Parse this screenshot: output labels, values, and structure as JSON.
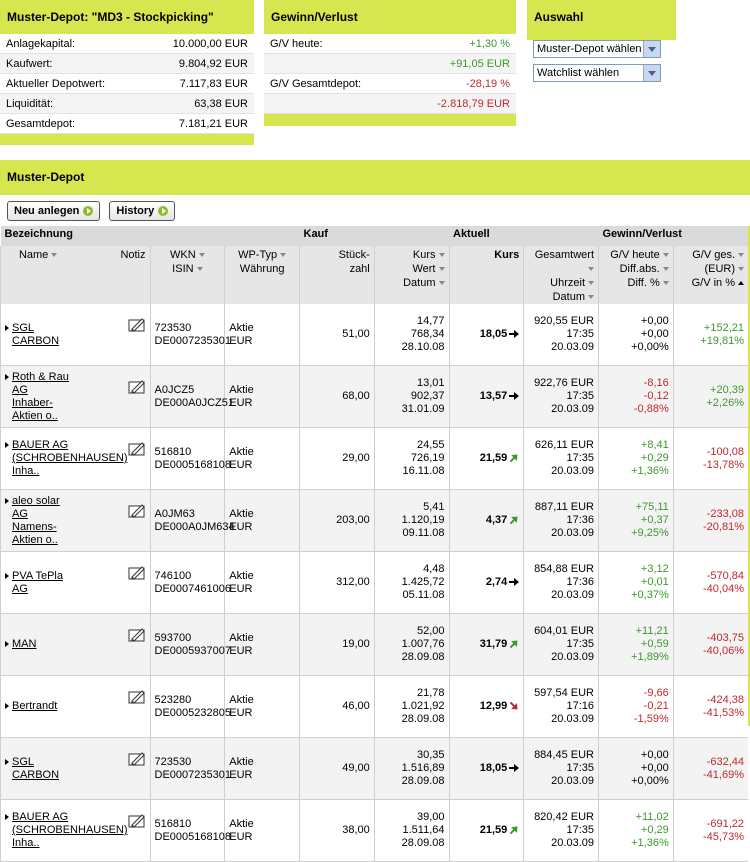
{
  "summary": {
    "title": "Muster-Depot: \"MD3 - Stockpicking\"",
    "rows": [
      [
        "Anlagekapital:",
        "10.000,00 EUR"
      ],
      [
        "Kaufwert:",
        "9.804,92 EUR"
      ],
      [
        "Aktueller Depotwert:",
        "7.117,83 EUR"
      ],
      [
        "Liquidität:",
        "63,38 EUR"
      ],
      [
        "Gesamtdepot:",
        "7.181,21 EUR"
      ]
    ]
  },
  "gv": {
    "title": "Gewinn/Verlust",
    "rows": [
      {
        "label": "G/V heute:",
        "pct": "+1,30 %",
        "abs": "+91,05 EUR"
      },
      {
        "label": "G/V Gesamtdepot:",
        "pct": "-28,19 %",
        "abs": "-2.818,79 EUR"
      }
    ]
  },
  "auswahl": {
    "title": "Auswahl",
    "selects": [
      "Muster-Depot wählen",
      "Watchlist wählen"
    ]
  },
  "depot": {
    "title": "Muster-Depot",
    "buttons": [
      "Neu anlegen",
      "History"
    ],
    "groups": [
      "Bezeichnung",
      "Kauf",
      "Aktuell",
      "Gewinn/Verlust"
    ],
    "columns": [
      [
        "Name"
      ],
      [
        "Notiz"
      ],
      [
        "WKN",
        "ISIN"
      ],
      [
        "WP-Typ",
        "Währung"
      ],
      [
        "Stück-",
        "zahl"
      ],
      [
        "Kurs",
        "Wert",
        "Datum"
      ],
      [
        "Kurs"
      ],
      [
        "Gesamtwert",
        "Uhrzeit",
        "Datum"
      ],
      [
        "G/V heute",
        "Diff.abs.",
        "Diff. %"
      ],
      [
        "G/V ges.",
        "(EUR)",
        "G/V in %"
      ]
    ],
    "rows": [
      {
        "name": "SGL CARBON",
        "wkn": "723530",
        "isin": "DE0007235301",
        "typ": "Aktie",
        "currency": "EUR",
        "qty": "51,00",
        "buy": [
          "14,77",
          "768,34",
          "28.10.08"
        ],
        "price": "18,05",
        "trend": "right",
        "now": [
          "920,55 EUR",
          "17:35",
          "20.03.09"
        ],
        "today": [
          "+0,00",
          "+0,00",
          "+0,00%"
        ],
        "total": [
          "+152,21",
          "+19,81%"
        ]
      },
      {
        "name": "Roth & Rau AG Inhaber-Aktien o..",
        "wkn": "A0JCZ5",
        "isin": "DE000A0JCZ51",
        "typ": "Aktie",
        "currency": "EUR",
        "qty": "68,00",
        "buy": [
          "13,01",
          "902,37",
          "31.01.09"
        ],
        "price": "13,57",
        "trend": "right",
        "now": [
          "922,76 EUR",
          "17:35",
          "20.03.09"
        ],
        "today": [
          "-8,16",
          "-0,12",
          "-0,88%"
        ],
        "total": [
          "+20,39",
          "+2,26%"
        ]
      },
      {
        "name": "BAUER AG (SCHROBENHAUSEN) Inha..",
        "wkn": "516810",
        "isin": "DE0005168108",
        "typ": "Aktie",
        "currency": "EUR",
        "qty": "29,00",
        "buy": [
          "24,55",
          "726,19",
          "16.11.08"
        ],
        "price": "21,59",
        "trend": "up",
        "now": [
          "626,11 EUR",
          "17:35",
          "20.03.09"
        ],
        "today": [
          "+8,41",
          "+0,29",
          "+1,36%"
        ],
        "total": [
          "-100,08",
          "-13,78%"
        ]
      },
      {
        "name": "aleo solar AG Namens-Aktien o..",
        "wkn": "A0JM63",
        "isin": "DE000A0JM634",
        "typ": "Aktie",
        "currency": "EUR",
        "qty": "203,00",
        "buy": [
          "5,41",
          "1.120,19",
          "09.11.08"
        ],
        "price": "4,37",
        "trend": "up",
        "now": [
          "887,11 EUR",
          "17:36",
          "20.03.09"
        ],
        "today": [
          "+75,11",
          "+0,37",
          "+9,25%"
        ],
        "total": [
          "-233,08",
          "-20,81%"
        ]
      },
      {
        "name": "PVA TePla AG",
        "wkn": "746100",
        "isin": "DE0007461006",
        "typ": "Aktie",
        "currency": "EUR",
        "qty": "312,00",
        "buy": [
          "4,48",
          "1.425,72",
          "05.11.08"
        ],
        "price": "2,74",
        "trend": "right",
        "now": [
          "854,88 EUR",
          "17:36",
          "20.03.09"
        ],
        "today": [
          "+3,12",
          "+0,01",
          "+0,37%"
        ],
        "total": [
          "-570,84",
          "-40,04%"
        ]
      },
      {
        "name": "MAN",
        "wkn": "593700",
        "isin": "DE0005937007",
        "typ": "Aktie",
        "currency": "EUR",
        "qty": "19,00",
        "buy": [
          "52,00",
          "1.007,76",
          "28.09.08"
        ],
        "price": "31,79",
        "trend": "up",
        "now": [
          "604,01 EUR",
          "17:35",
          "20.03.09"
        ],
        "today": [
          "+11,21",
          "+0,59",
          "+1,89%"
        ],
        "total": [
          "-403,75",
          "-40,06%"
        ]
      },
      {
        "name": "Bertrandt",
        "wkn": "523280",
        "isin": "DE0005232805",
        "typ": "Aktie",
        "currency": "EUR",
        "qty": "46,00",
        "buy": [
          "21,78",
          "1.021,92",
          "28.09.08"
        ],
        "price": "12,99",
        "trend": "down",
        "now": [
          "597,54 EUR",
          "17:16",
          "20.03.09"
        ],
        "today": [
          "-9,66",
          "-0,21",
          "-1,59%"
        ],
        "total": [
          "-424,38",
          "-41,53%"
        ]
      },
      {
        "name": "SGL CARBON",
        "wkn": "723530",
        "isin": "DE0007235301",
        "typ": "Aktie",
        "currency": "EUR",
        "qty": "49,00",
        "buy": [
          "30,35",
          "1.516,89",
          "28.09.08"
        ],
        "price": "18,05",
        "trend": "right",
        "now": [
          "884,45 EUR",
          "17:35",
          "20.03.09"
        ],
        "today": [
          "+0,00",
          "+0,00",
          "+0,00%"
        ],
        "total": [
          "-632,44",
          "-41,69%"
        ]
      },
      {
        "name": "BAUER AG (SCHROBENHAUSEN) Inha..",
        "wkn": "516810",
        "isin": "DE0005168108",
        "typ": "Aktie",
        "currency": "EUR",
        "qty": "38,00",
        "buy": [
          "39,00",
          "1.511,64",
          "28.09.08"
        ],
        "price": "21,59",
        "trend": "up",
        "now": [
          "820,42 EUR",
          "17:35",
          "20.03.09"
        ],
        "today": [
          "+11,02",
          "+0,29",
          "+1,36%"
        ],
        "total": [
          "-691,22",
          "-45,73%"
        ]
      }
    ]
  }
}
